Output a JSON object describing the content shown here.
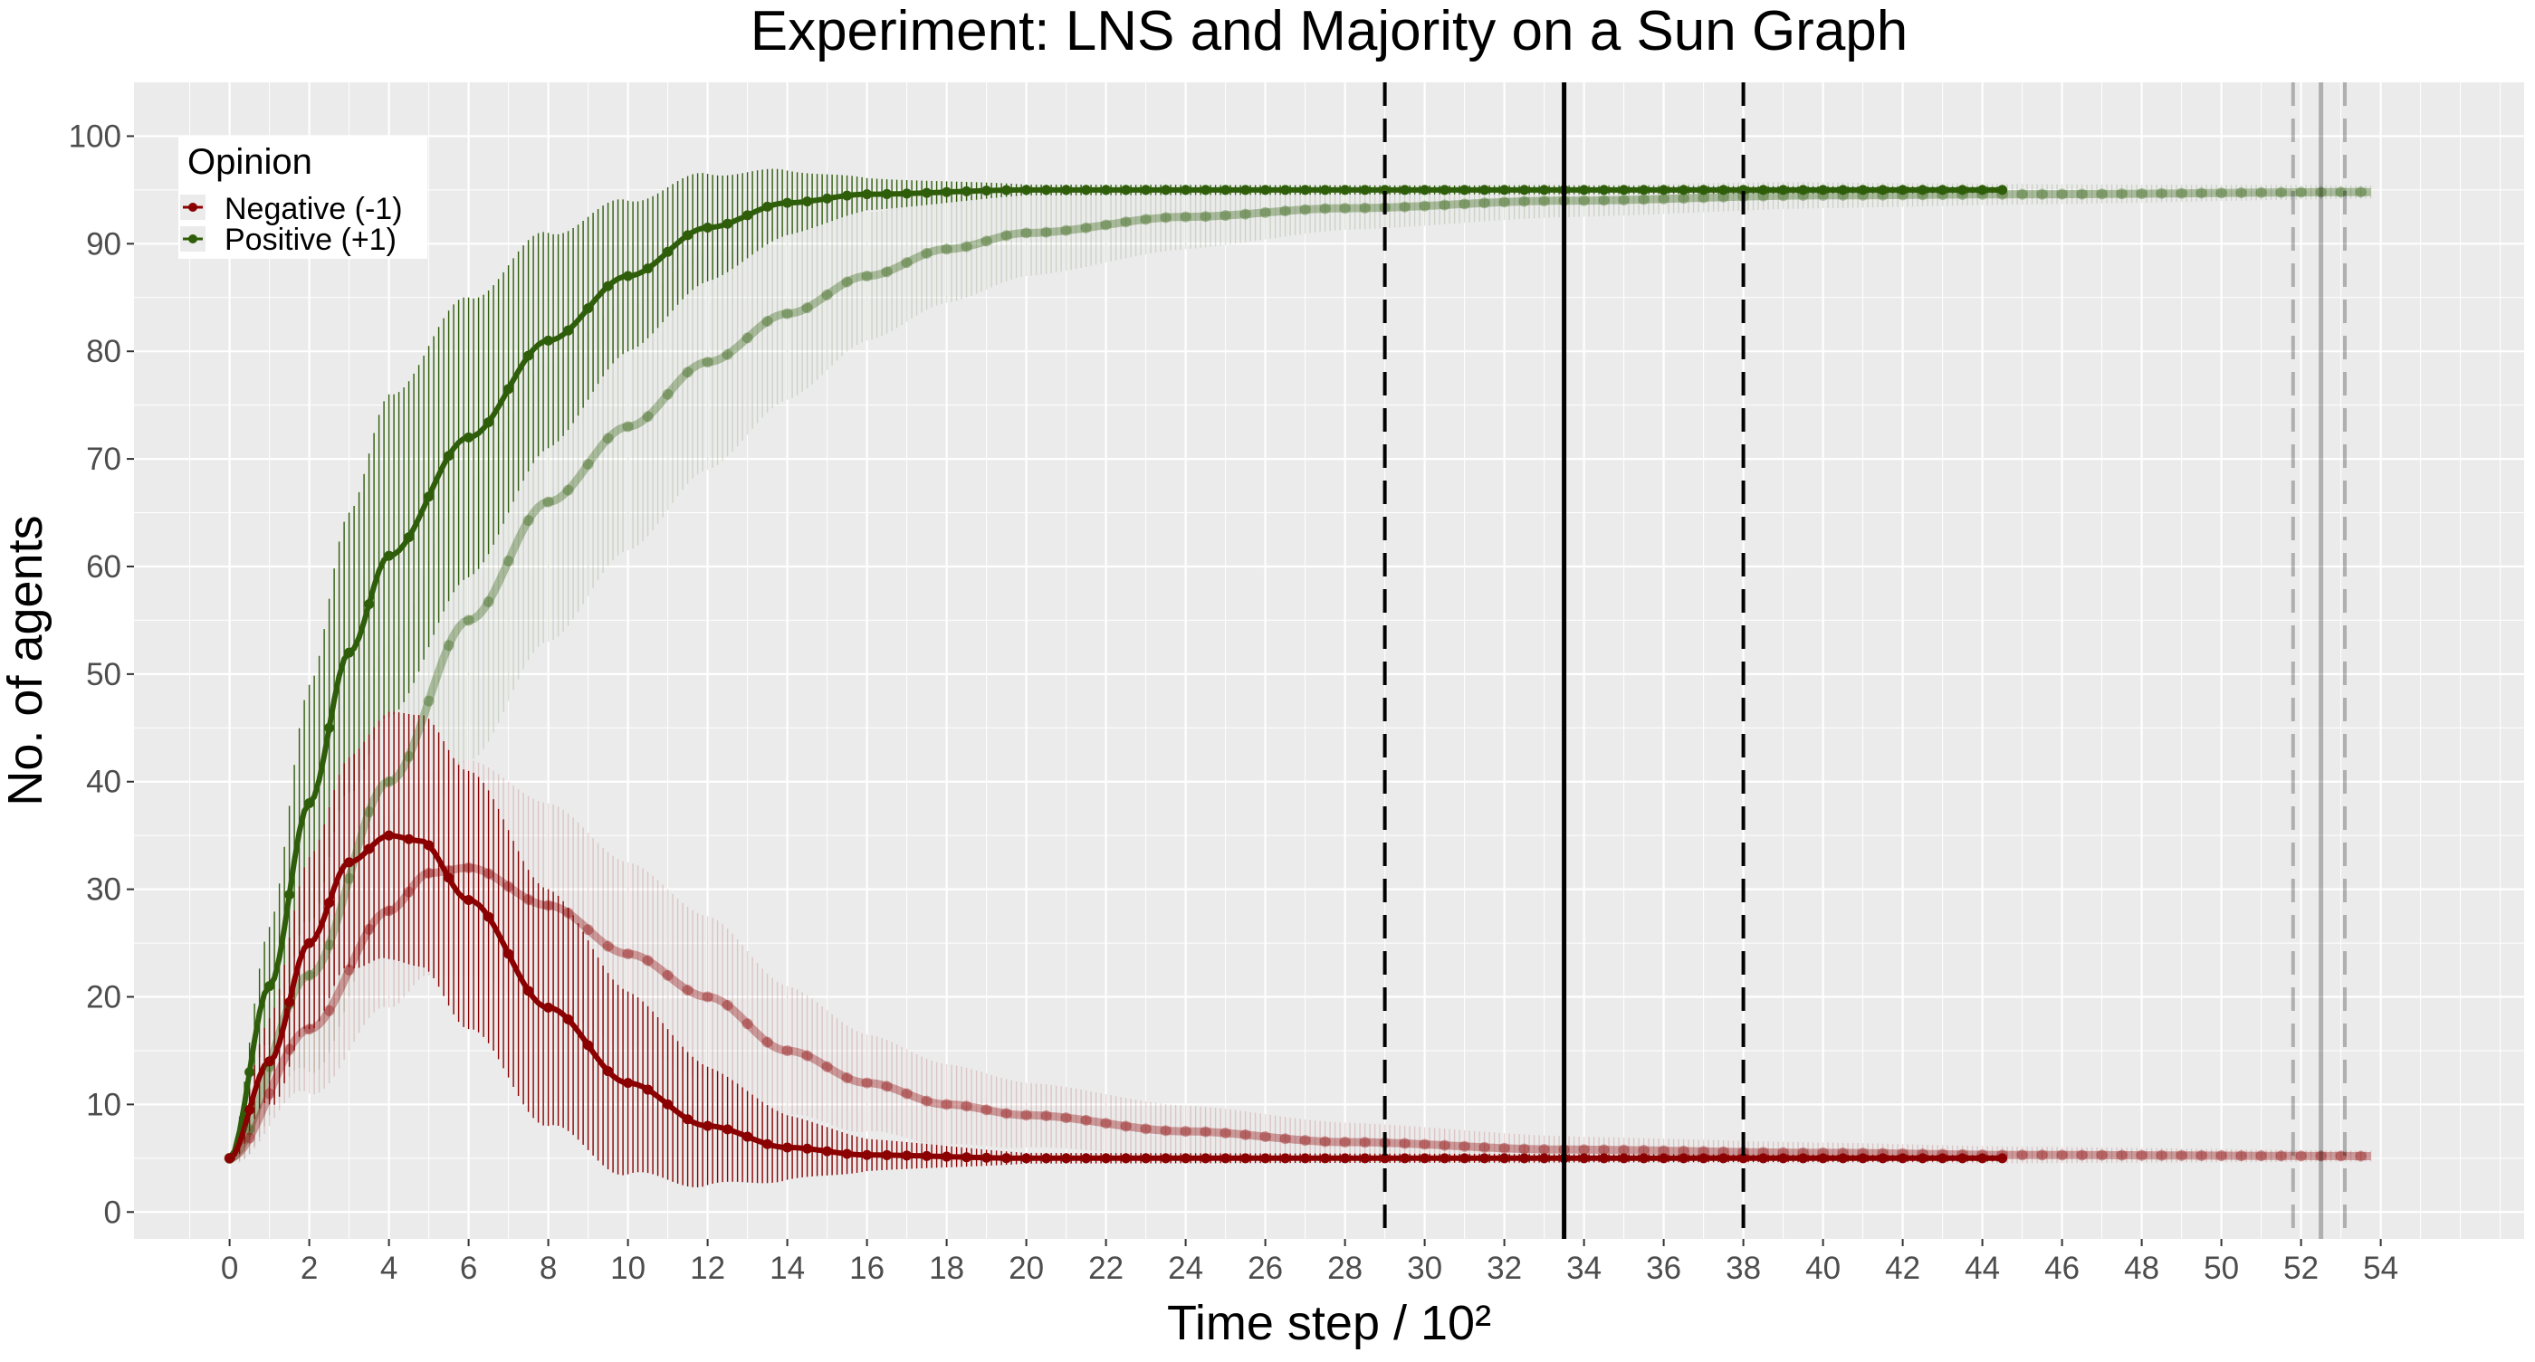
{
  "chart_data": {
    "type": "line",
    "title": "Experiment: LNS and Majority on a Sun Graph",
    "xlabel": "Time step / 10²",
    "ylabel": "No. of agents",
    "xlim": [
      -2.4,
      57.6
    ],
    "ylim": [
      -2.5,
      105
    ],
    "x_ticks": [
      0,
      2,
      4,
      6,
      8,
      10,
      12,
      14,
      16,
      18,
      20,
      22,
      24,
      26,
      28,
      30,
      32,
      34,
      36,
      38,
      40,
      42,
      44,
      46,
      48,
      50,
      52,
      54
    ],
    "y_ticks": [
      0,
      10,
      20,
      30,
      40,
      50,
      60,
      70,
      80,
      90,
      100
    ],
    "grid": true,
    "legend": {
      "title": "Opinion",
      "position": "top-left",
      "entries": [
        {
          "label": "Negative (-1)",
          "color": "#8B0000"
        },
        {
          "label": "Positive (+1)",
          "color": "#2F5E0B"
        }
      ]
    },
    "series": [
      {
        "group": "Positive (+1)",
        "color": "#2F5E0B",
        "opacity": 1.0,
        "x_end": 44.5,
        "points": [
          [
            0,
            5
          ],
          [
            1,
            21
          ],
          [
            2,
            38
          ],
          [
            3,
            52
          ],
          [
            4,
            61
          ],
          [
            6,
            72
          ],
          [
            8,
            81
          ],
          [
            10,
            87
          ],
          [
            12,
            91.5
          ],
          [
            14,
            93.8
          ],
          [
            16,
            94.6
          ],
          [
            20,
            95
          ],
          [
            44.5,
            95
          ]
        ],
        "err_half": [
          [
            0,
            0
          ],
          [
            2,
            11
          ],
          [
            4,
            15
          ],
          [
            6,
            13
          ],
          [
            8,
            10
          ],
          [
            10,
            7
          ],
          [
            12,
            5
          ],
          [
            14,
            3
          ],
          [
            16,
            1.5
          ],
          [
            20,
            0.5
          ],
          [
            44.5,
            0.3
          ]
        ]
      },
      {
        "group": "Negative (-1)",
        "color": "#8B0000",
        "opacity": 1.0,
        "x_end": 44.5,
        "points": [
          [
            0,
            5
          ],
          [
            1,
            14
          ],
          [
            2,
            25
          ],
          [
            3,
            32.5
          ],
          [
            4,
            35
          ],
          [
            4.8,
            34.5
          ],
          [
            6,
            29
          ],
          [
            8,
            19
          ],
          [
            10,
            12
          ],
          [
            12,
            8
          ],
          [
            14,
            6
          ],
          [
            16,
            5.3
          ],
          [
            20,
            5
          ],
          [
            44.5,
            5
          ]
        ],
        "err_half": [
          [
            0,
            0
          ],
          [
            2,
            8
          ],
          [
            4,
            11.5
          ],
          [
            6,
            12
          ],
          [
            8,
            11
          ],
          [
            10,
            8.5
          ],
          [
            12,
            5.5
          ],
          [
            14,
            3
          ],
          [
            16,
            1.5
          ],
          [
            20,
            0.5
          ],
          [
            44.5,
            0.3
          ]
        ]
      },
      {
        "group": "Positive (+1)",
        "color": "#2F5E0B",
        "opacity": 0.3,
        "x_end": 53.8,
        "points": [
          [
            0,
            5
          ],
          [
            2,
            22
          ],
          [
            4,
            40
          ],
          [
            6,
            55
          ],
          [
            8,
            66
          ],
          [
            10,
            73
          ],
          [
            12,
            79
          ],
          [
            14,
            83.5
          ],
          [
            16,
            87
          ],
          [
            18,
            89.5
          ],
          [
            20,
            91
          ],
          [
            24,
            92.5
          ],
          [
            28,
            93.3
          ],
          [
            33.5,
            94
          ],
          [
            40,
            94.5
          ],
          [
            45,
            94.6
          ],
          [
            53.8,
            94.8
          ]
        ],
        "err_half": [
          [
            0,
            0
          ],
          [
            2,
            9
          ],
          [
            4,
            13
          ],
          [
            8,
            13
          ],
          [
            12,
            10
          ],
          [
            16,
            6
          ],
          [
            20,
            4
          ],
          [
            28,
            2
          ],
          [
            34,
            1.5
          ],
          [
            44,
            1
          ],
          [
            53.8,
            0.6
          ]
        ]
      },
      {
        "group": "Negative (-1)",
        "color": "#8B0000",
        "opacity": 0.3,
        "x_end": 53.8,
        "points": [
          [
            0,
            5
          ],
          [
            2,
            17
          ],
          [
            4,
            28
          ],
          [
            5,
            31.5
          ],
          [
            6,
            32
          ],
          [
            8,
            28.5
          ],
          [
            10,
            24
          ],
          [
            12,
            20
          ],
          [
            14,
            15
          ],
          [
            16,
            12
          ],
          [
            18,
            10
          ],
          [
            20,
            9
          ],
          [
            24,
            7.5
          ],
          [
            28,
            6.5
          ],
          [
            33.5,
            5.8
          ],
          [
            40,
            5.5
          ],
          [
            45,
            5.3
          ],
          [
            53.8,
            5.2
          ]
        ],
        "err_half": [
          [
            0,
            0
          ],
          [
            2,
            6
          ],
          [
            4,
            9
          ],
          [
            6,
            10
          ],
          [
            8,
            9.5
          ],
          [
            10,
            8.5
          ],
          [
            12,
            7.5
          ],
          [
            14,
            6
          ],
          [
            16,
            4.5
          ],
          [
            20,
            3
          ],
          [
            28,
            1.8
          ],
          [
            34,
            1.2
          ],
          [
            44,
            0.8
          ],
          [
            53.8,
            0.5
          ]
        ]
      }
    ],
    "vlines": [
      {
        "x": 29.0,
        "style": "dashed",
        "color": "#000000",
        "opacity": 1.0
      },
      {
        "x": 33.5,
        "style": "solid",
        "color": "#000000",
        "opacity": 1.0
      },
      {
        "x": 38.0,
        "style": "dashed",
        "color": "#000000",
        "opacity": 1.0
      },
      {
        "x": 51.8,
        "style": "dashed",
        "color": "#000000",
        "opacity": 0.25
      },
      {
        "x": 52.5,
        "style": "solid",
        "color": "#000000",
        "opacity": 0.25
      },
      {
        "x": 53.1,
        "style": "dashed",
        "color": "#000000",
        "opacity": 0.25
      }
    ]
  }
}
